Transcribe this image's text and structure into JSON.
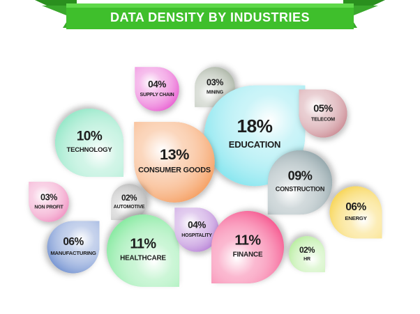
{
  "chart_data": {
    "type": "bubble",
    "title": "DATA DENSITY BY INDUSTRIES",
    "categories": [
      "SUPPLY CHAIN",
      "MINING",
      "EDUCATION",
      "TELECOM",
      "TECHNOLOGY",
      "CONSUMER GOODS",
      "CONSTRUCTION",
      "NON PROFIT",
      "AUTOMOTIVE",
      "ENERGY",
      "MANUFACTURING",
      "HEALTHCARE",
      "HOSPITALITY",
      "FINANCE",
      "HR"
    ],
    "values": [
      4,
      3,
      18,
      5,
      10,
      13,
      9,
      3,
      2,
      6,
      6,
      11,
      4,
      11,
      2
    ],
    "value_labels": [
      "04%",
      "03%",
      "18%",
      "05%",
      "10%",
      "13%",
      "09%",
      "03%",
      "02%",
      "06%",
      "06%",
      "11%",
      "04%",
      "11%",
      "02%"
    ],
    "colors": [
      "#e85ad0",
      "#a9b3a3",
      "#7fe4ee",
      "#c98790",
      "#8ee6c4",
      "#f59a5a",
      "#8fa3a8",
      "#f08fc0",
      "#b5b5b5",
      "#f7d24a",
      "#6f8fd0",
      "#7fe89a",
      "#b67fd6",
      "#f5508a",
      "#b4ec9a"
    ]
  }
}
